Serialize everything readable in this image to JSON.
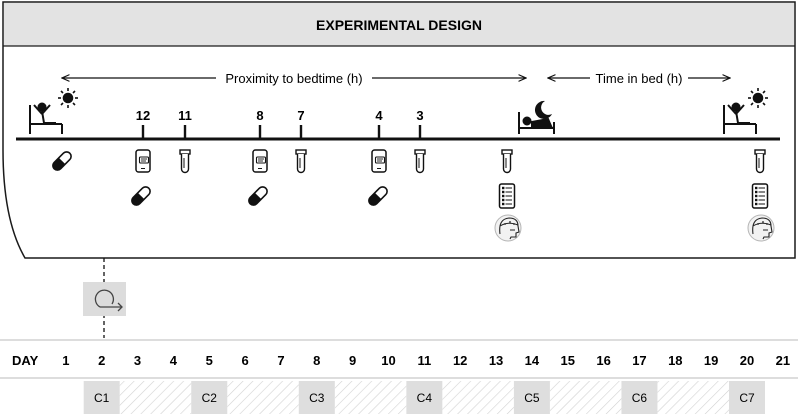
{
  "panel": {
    "title": "EXPERIMENTAL DESIGN",
    "proximity_label": "Proximity to bedtime (h)",
    "time_in_bed_label": "Time in bed (h)",
    "hour_ticks": [
      {
        "label": "12",
        "event": "smartphone-questionnaire"
      },
      {
        "label": "11",
        "event": "sample-tube"
      },
      {
        "label": "8",
        "event": "smartphone-questionnaire"
      },
      {
        "label": "7",
        "event": "sample-tube"
      },
      {
        "label": "4",
        "event": "smartphone-questionnaire"
      },
      {
        "label": "3",
        "event": "sample-tube"
      }
    ],
    "icons": {
      "wake": "person-waking-in-bed-icon",
      "sun": "sun-icon",
      "sleep": "person-sleeping-in-bed-icon",
      "moon": "moon-icon",
      "pill": "capsule-pill-icon",
      "phone": "smartphone-questionnaire-icon",
      "tube": "sample-tube-icon",
      "form": "questionnaire-form-icon",
      "cap": "eeg-cap-head-icon",
      "cycle": "repeat-cycle-icon"
    }
  },
  "timeline": {
    "day_label": "DAY",
    "days": [
      "1",
      "2",
      "3",
      "4",
      "5",
      "6",
      "7",
      "8",
      "9",
      "10",
      "11",
      "12",
      "13",
      "14",
      "15",
      "16",
      "17",
      "18",
      "19",
      "20",
      "21"
    ],
    "conditions": [
      {
        "label": "C1",
        "day": 2
      },
      {
        "label": "C2",
        "day": 5
      },
      {
        "label": "C3",
        "day": 8
      },
      {
        "label": "C4",
        "day": 11
      },
      {
        "label": "C5",
        "day": 14
      },
      {
        "label": "C6",
        "day": 17
      },
      {
        "label": "C7",
        "day": 20
      }
    ]
  }
}
